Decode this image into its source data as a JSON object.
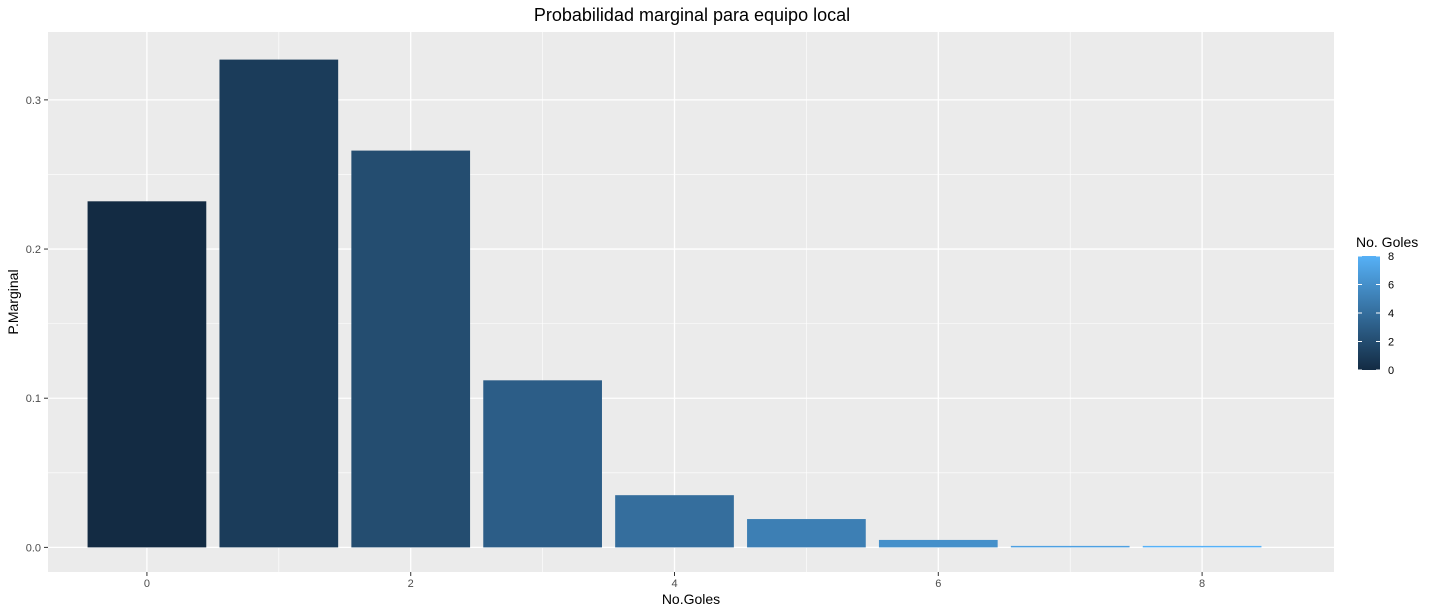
{
  "chart_data": {
    "type": "bar",
    "title": "Probabilidad marginal para equipo local",
    "xlabel": "No.Goles",
    "ylabel": "P.Marginal",
    "x": [
      0,
      1,
      2,
      3,
      4,
      5,
      6,
      7,
      8
    ],
    "values": [
      0.232,
      0.327,
      0.266,
      0.112,
      0.035,
      0.019,
      0.005,
      0.001,
      0.001
    ],
    "xlim": [
      -0.75,
      9.0
    ],
    "ylim": [
      -0.0165,
      0.3455
    ],
    "x_ticks": [
      0,
      2,
      4,
      6,
      8
    ],
    "x_tick_labels": [
      "0",
      "2",
      "4",
      "6",
      "8"
    ],
    "y_ticks": [
      0.0,
      0.1,
      0.2,
      0.3
    ],
    "y_tick_labels": [
      "0.0",
      "0.1",
      "0.2",
      "0.3"
    ],
    "grid": true,
    "legend": {
      "title": "No. Goles",
      "placement": "right",
      "type": "colorbar",
      "range": [
        0,
        8
      ],
      "ticks": [
        0,
        2,
        4,
        6,
        8
      ],
      "tick_labels": [
        "0",
        "2",
        "4",
        "6",
        "8"
      ],
      "color_low": "#132B43",
      "color_high": "#56B1F7"
    },
    "colors": {
      "panel_background": "#EBEBEB",
      "gridline": "#FFFFFF",
      "low": "#132B43",
      "high": "#56B1F7"
    }
  }
}
